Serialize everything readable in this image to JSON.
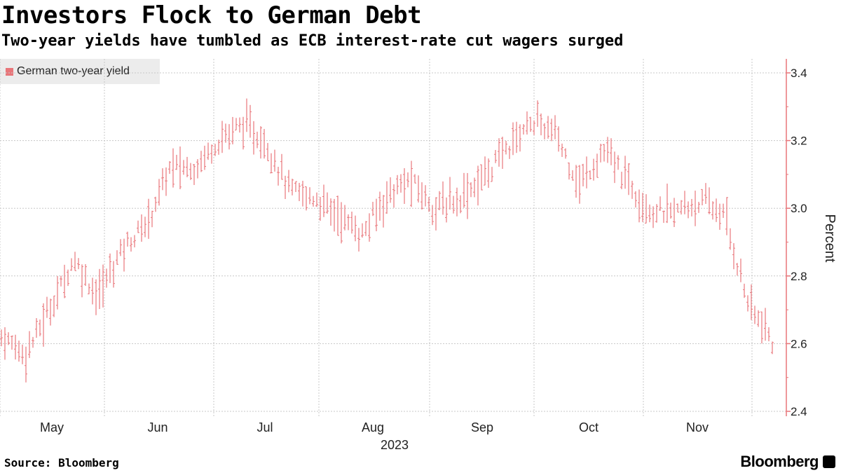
{
  "chart_data": {
    "type": "line",
    "title": "Investors Flock to German Debt",
    "subtitle": "Two-year yields have tumbled as ECB interest-rate cut wagers surged",
    "legend": [
      "German two-year yield"
    ],
    "ylabel": "Percent",
    "xlabel": "2023",
    "ylim": [
      2.4,
      3.4
    ],
    "yticks": [
      "2.4",
      "2.6",
      "2.8",
      "3.0",
      "3.2",
      "3.4"
    ],
    "xticks": [
      "May",
      "Jun",
      "Jul",
      "Aug",
      "Sep",
      "Oct",
      "Nov"
    ],
    "series": [
      {
        "name": "German two-year yield",
        "color": "#e8767a",
        "x": [
          "Apr 28",
          "May 05",
          "May 12",
          "May 19",
          "May 26",
          "Jun 02",
          "Jun 09",
          "Jun 16",
          "Jun 23",
          "Jun 30",
          "Jul 07",
          "Jul 14",
          "Jul 21",
          "Jul 28",
          "Aug 04",
          "Aug 11",
          "Aug 18",
          "Aug 25",
          "Sep 01",
          "Sep 08",
          "Sep 15",
          "Sep 22",
          "Sep 29",
          "Oct 06",
          "Oct 13",
          "Oct 20",
          "Oct 27",
          "Nov 03",
          "Nov 10",
          "Nov 17",
          "Nov 24",
          "Dec 01",
          "Dec 06"
        ],
        "values": [
          2.62,
          2.57,
          2.7,
          2.85,
          2.74,
          2.88,
          2.95,
          3.12,
          3.12,
          3.2,
          3.25,
          3.19,
          3.05,
          3.03,
          2.98,
          2.92,
          3.04,
          3.08,
          3.0,
          3.03,
          3.09,
          3.18,
          3.26,
          3.22,
          3.07,
          3.17,
          3.08,
          2.99,
          2.99,
          3.02,
          2.98,
          2.72,
          2.6
        ]
      }
    ]
  },
  "footer": {
    "source": "Source: Bloomberg",
    "brand": "Bloomberg"
  }
}
